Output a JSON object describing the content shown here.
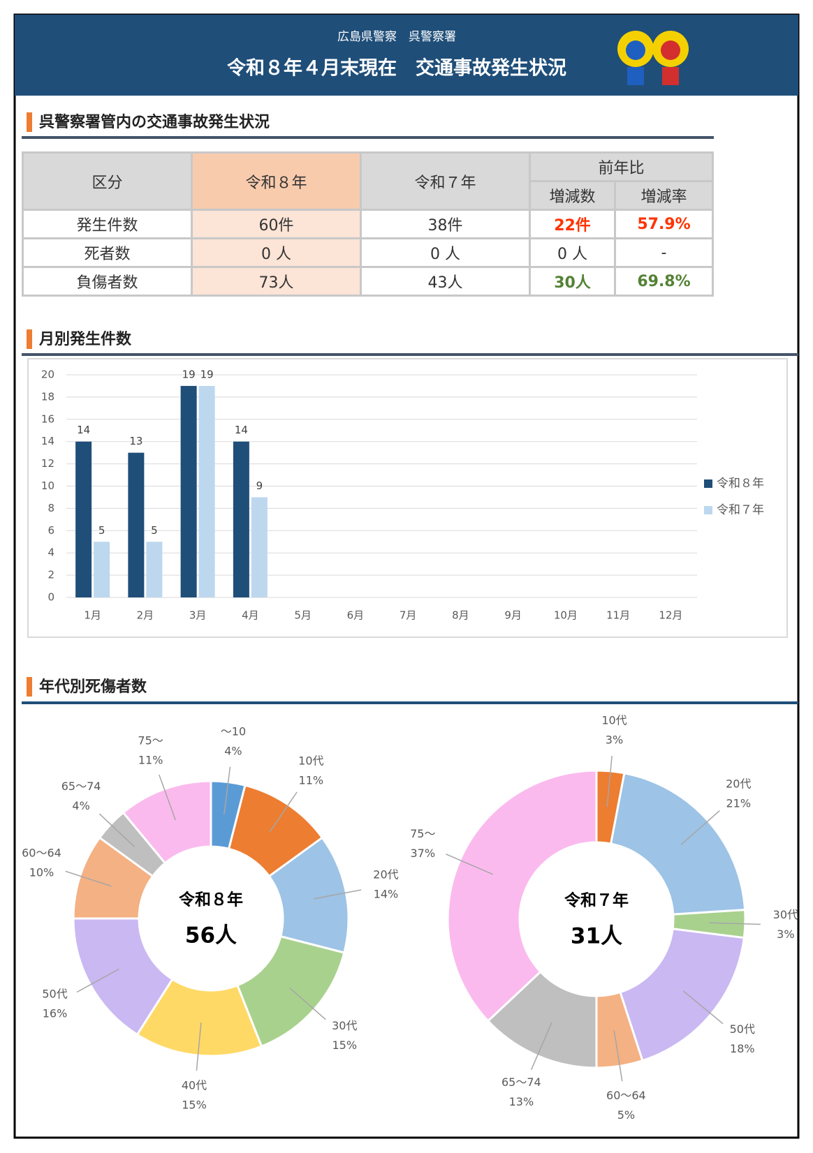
{
  "header": {
    "subtitle": "広島県警察　呉警察署",
    "title": "令和８年４月末現在　交通事故発生状況"
  },
  "section1": {
    "title": "呉警察署管内の交通事故発生状況"
  },
  "table": {
    "headers": {
      "category": "区分",
      "current": "令和８年",
      "previous": "令和７年",
      "comparison": "前年比",
      "diff": "増減数",
      "rate": "増減率"
    },
    "rows": [
      [
        "発生件数",
        "60件",
        "38件",
        "22件",
        "57.9%"
      ],
      [
        "死者数",
        "0 人",
        "0 人",
        "0 人",
        "-"
      ],
      [
        "負傷者数",
        "73人",
        "43人",
        "30人",
        "69.8%"
      ]
    ]
  },
  "section2": {
    "title": "月別発生件数"
  },
  "section3": {
    "title": "年代別死傷者数"
  },
  "chart_data": [
    {
      "type": "bar",
      "categories": [
        "1月",
        "2月",
        "3月",
        "4月",
        "5月",
        "6月",
        "7月",
        "8月",
        "9月",
        "10月",
        "11月",
        "12月"
      ],
      "series": [
        {
          "name": "令和８年",
          "color": "#1f4e79",
          "values": [
            14,
            13,
            19,
            14,
            null,
            null,
            null,
            null,
            null,
            null,
            null,
            null
          ]
        },
        {
          "name": "令和７年",
          "color": "#bdd7ee",
          "values": [
            5,
            5,
            19,
            9,
            null,
            null,
            null,
            null,
            null,
            null,
            null,
            null
          ]
        }
      ],
      "ylim": [
        0,
        20
      ],
      "yticks": [
        0,
        2,
        4,
        6,
        8,
        10,
        12,
        14,
        16,
        18,
        20
      ],
      "grid": true,
      "legend": "right"
    },
    {
      "type": "pie",
      "center_title": "令和８年",
      "center_value": "56人",
      "categories": [
        "～10",
        "10代",
        "20代",
        "30代",
        "40代",
        "50代",
        "60～64",
        "65～74",
        "75～"
      ],
      "values": [
        4,
        11,
        14,
        15,
        15,
        16,
        10,
        4,
        11
      ],
      "value_labels": [
        "4%",
        "11%",
        "14%",
        "15%",
        "15%",
        "16%",
        "10%",
        "4%",
        "11%"
      ],
      "colors": [
        "#5b9bd5",
        "#ed7d31",
        "#9dc3e6",
        "#a9d18e",
        "#ffd966",
        "#c9b8f2",
        "#f4b183",
        "#bfbfbf",
        "#fbbaee"
      ]
    },
    {
      "type": "pie",
      "center_title": "令和７年",
      "center_value": "31人",
      "categories": [
        "10代",
        "20代",
        "30代",
        "50代",
        "60～64",
        "65～74",
        "75～"
      ],
      "values": [
        3,
        21,
        3,
        18,
        5,
        13,
        37
      ],
      "value_labels": [
        "3%",
        "21%",
        "3%",
        "18%",
        "5%",
        "13%",
        "37%"
      ],
      "colors": [
        "#ed7d31",
        "#9dc3e6",
        "#a9d18e",
        "#c9b8f2",
        "#f4b183",
        "#bfbfbf",
        "#fbbaee"
      ]
    }
  ]
}
